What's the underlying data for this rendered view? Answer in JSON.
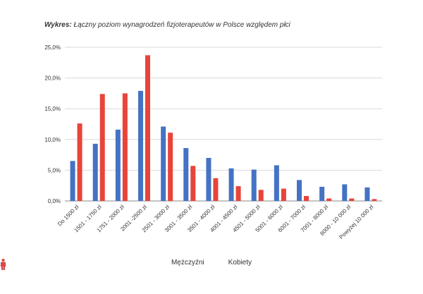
{
  "title": {
    "prefix": "Wykres:",
    "text": "Łączny poziom wynagrodzeń fizjoterapeutów w Polsce względem płci"
  },
  "colors": {
    "men": "#4472C4",
    "women": "#E8443A",
    "grid": "#d9d9d9",
    "axis": "#888888"
  },
  "chart_data": {
    "type": "bar",
    "title": "Łączny poziom wynagrodzeń fizjoterapeutów w Polsce względem płci",
    "categories": [
      "Do 1500 zł",
      "1501 - 1750 zł",
      "1751 - 2000 zł",
      "2001 -2500 zł",
      "2501 - 3000 zł",
      "3001 - 3500 zł",
      "3501 - 4000 zł",
      "4001 - 4500 zł",
      "4501 - 5000 zł",
      "5001 - 6000 zł",
      "6001 - 7000 zł",
      "7001 - 8000 zł",
      "8000 - 10 000 zł",
      "Powyżej 10 000 zł"
    ],
    "series": [
      {
        "name": "Mężczyźni",
        "values": [
          6.5,
          9.3,
          11.6,
          17.9,
          12.1,
          8.6,
          7.0,
          5.3,
          5.1,
          5.8,
          3.4,
          2.3,
          2.7,
          2.2
        ]
      },
      {
        "name": "Kobiety",
        "values": [
          12.6,
          17.4,
          17.5,
          23.7,
          11.1,
          5.7,
          3.7,
          2.4,
          1.8,
          2.0,
          0.8,
          0.4,
          0.4,
          0.3
        ]
      }
    ],
    "ylim": [
      0,
      25
    ],
    "yticks": [
      "0,0%",
      "5,0%",
      "10,0%",
      "15,0%",
      "20,0%",
      "25,0%"
    ],
    "ytick_values": [
      0,
      5,
      10,
      15,
      20,
      25
    ],
    "grid": true,
    "legend": "bottom-center"
  },
  "legend": {
    "men_label": "Mężczyźni",
    "women_label": "Kobiety",
    "men_icon": "male-person-icon",
    "women_icon": "female-person-icon"
  }
}
